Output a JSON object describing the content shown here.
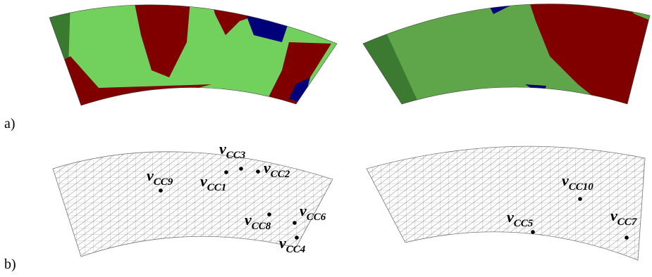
{
  "panels": [
    {
      "label": "a)"
    },
    {
      "label": "b)"
    }
  ],
  "vertices": [
    {
      "base": "v",
      "sub": "CC9"
    },
    {
      "base": "v",
      "sub": "CC1"
    },
    {
      "base": "v",
      "sub": "CC3"
    },
    {
      "base": "v",
      "sub": "CC2"
    },
    {
      "base": "v",
      "sub": "CC8"
    },
    {
      "base": "v",
      "sub": "CC6"
    },
    {
      "base": "v",
      "sub": "CC4"
    },
    {
      "base": "v",
      "sub": "CC10"
    },
    {
      "base": "v",
      "sub": "CC5"
    },
    {
      "base": "v",
      "sub": "CC7"
    }
  ]
}
